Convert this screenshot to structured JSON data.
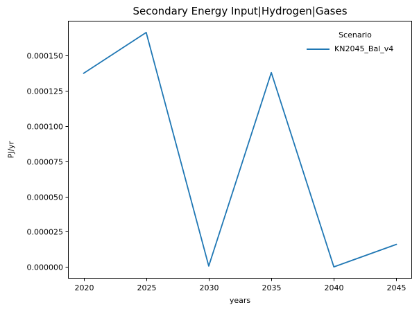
{
  "chart_data": {
    "type": "line",
    "title": "Secondary Energy Input|Hydrogen|Gases",
    "xlabel": "years",
    "ylabel": "PJ/yr",
    "x": [
      2020,
      2025,
      2030,
      2035,
      2040,
      2045
    ],
    "series": [
      {
        "name": "KN2045_Bal_v4",
        "color": "#1f77b4",
        "values": [
          0.0001375,
          0.0001665,
          6e-07,
          0.000138,
          0.0,
          1.6e-05
        ]
      }
    ],
    "legend": {
      "title": "Scenario",
      "position": "upper right",
      "frame": false
    },
    "axes": {
      "xlim": [
        2018.75,
        2046.25
      ],
      "ylim": [
        -8.3e-06,
        0.0001748
      ],
      "x_ticks": [
        2020,
        2025,
        2030,
        2035,
        2040,
        2045
      ],
      "y_ticks": [
        0.0,
        2.5e-05,
        5e-05,
        7.5e-05,
        0.0001,
        0.000125,
        0.00015
      ],
      "y_tick_decimals": 6,
      "grid": false
    },
    "colors": {
      "background": "#ffffff",
      "spine": "#000000",
      "text": "#000000",
      "accent": "#1f77b4"
    }
  }
}
